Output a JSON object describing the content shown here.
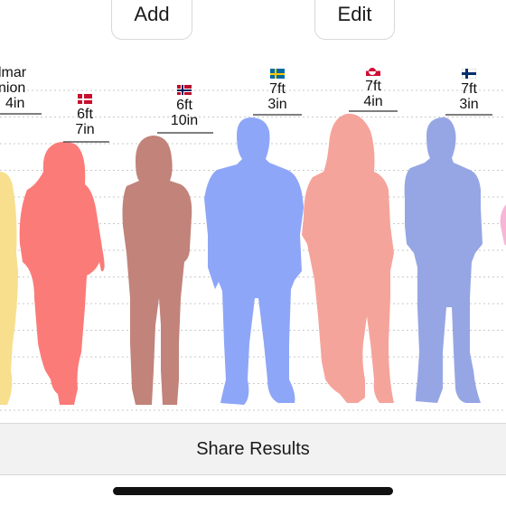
{
  "toolbar": {
    "add_label": "Add",
    "edit_label": "Edit"
  },
  "people": [
    {
      "label_lines": [
        "lmar",
        "nion",
        "4in"
      ],
      "color": "#f7df8e",
      "country": ""
    },
    {
      "label_lines": [
        "6ft",
        "7in"
      ],
      "color": "#fb7b79",
      "country": "Denmark"
    },
    {
      "label_lines": [
        "6ft",
        "10in"
      ],
      "color": "#c1837a",
      "country": "Norway"
    },
    {
      "label_lines": [
        "7ft",
        "3in"
      ],
      "color": "#8ea6f7",
      "country": "Sweden"
    },
    {
      "label_lines": [
        "7ft",
        "4in"
      ],
      "color": "#f5a49b",
      "country": "Greenland"
    },
    {
      "label_lines": [
        "7ft",
        "3in"
      ],
      "color": "#96a6e4",
      "country": "Finland"
    }
  ],
  "share": {
    "label": "Share Results"
  }
}
